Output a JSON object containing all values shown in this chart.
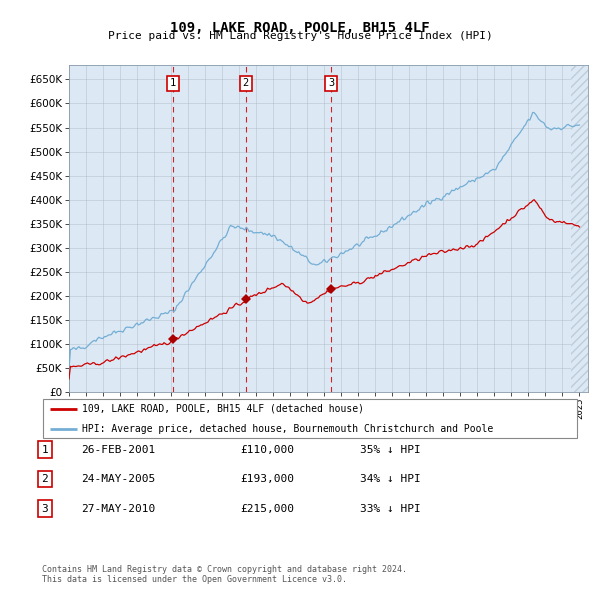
{
  "title": "109, LAKE ROAD, POOLE, BH15 4LF",
  "subtitle": "Price paid vs. HM Land Registry's House Price Index (HPI)",
  "plot_bg_color": "#dce9f5",
  "x_start_year": 1995,
  "x_end_year": 2025,
  "y_min": 0,
  "y_max": 680000,
  "y_ticks": [
    0,
    50000,
    100000,
    150000,
    200000,
    250000,
    300000,
    350000,
    400000,
    450000,
    500000,
    550000,
    600000,
    650000
  ],
  "hpi_color": "#74aed4",
  "property_color": "#cc0000",
  "marker_color": "#aa0000",
  "dashed_line_color": "#cc0000",
  "grid_color": "#b0b8c8",
  "transactions": [
    {
      "label": "1",
      "date_str": "26-FEB-2001",
      "date_num": 2001.12,
      "price": 110000,
      "pct": "35%",
      "dir": "↓"
    },
    {
      "label": "2",
      "date_str": "24-MAY-2005",
      "date_num": 2005.39,
      "price": 193000,
      "pct": "34%",
      "dir": "↓"
    },
    {
      "label": "3",
      "date_str": "27-MAY-2010",
      "date_num": 2010.4,
      "price": 215000,
      "pct": "33%",
      "dir": "↓"
    }
  ],
  "legend_entries": [
    "109, LAKE ROAD, POOLE, BH15 4LF (detached house)",
    "HPI: Average price, detached house, Bournemouth Christchurch and Poole"
  ],
  "footnote": "Contains HM Land Registry data © Crown copyright and database right 2024.\nThis data is licensed under the Open Government Licence v3.0.",
  "font_family": "monospace"
}
